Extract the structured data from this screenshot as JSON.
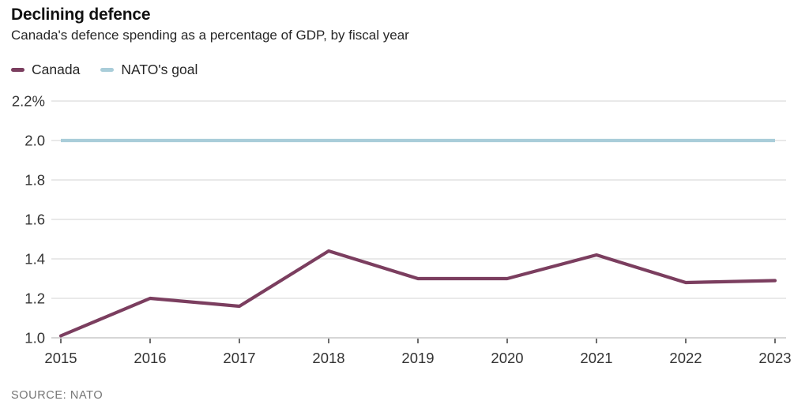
{
  "header": {
    "title": "Declining defence",
    "subtitle": "Canada's defence spending as a percentage of GDP, by fiscal year"
  },
  "legend": {
    "items": [
      {
        "label": "Canada",
        "color": "#7b3e5f"
      },
      {
        "label": "NATO's goal",
        "color": "#a9cdd9"
      }
    ]
  },
  "source": "SOURCE: NATO",
  "chart_data": {
    "type": "line",
    "title": "Declining defence",
    "subtitle": "Canada's defence spending as a percentage of GDP, by fiscal year",
    "x": [
      "2015",
      "2016",
      "2017",
      "2018",
      "2019",
      "2020",
      "2021",
      "2022",
      "2023"
    ],
    "xlabel": "",
    "ylabel": "",
    "series": [
      {
        "name": "Canada",
        "color": "#7b3e5f",
        "values": [
          1.01,
          1.2,
          1.16,
          1.44,
          1.3,
          1.3,
          1.42,
          1.28,
          1.29
        ]
      },
      {
        "name": "NATO's goal",
        "color": "#a9cdd9",
        "values": [
          2.0,
          2.0,
          2.0,
          2.0,
          2.0,
          2.0,
          2.0,
          2.0,
          2.0
        ]
      }
    ],
    "ylim": [
      1.0,
      2.2
    ],
    "yticks": [
      {
        "value": 1.0,
        "label": "1.0"
      },
      {
        "value": 1.2,
        "label": "1.2"
      },
      {
        "value": 1.4,
        "label": "1.4"
      },
      {
        "value": 1.6,
        "label": "1.6"
      },
      {
        "value": 1.8,
        "label": "1.8"
      },
      {
        "value": 2.0,
        "label": "2.0"
      },
      {
        "value": 2.2,
        "label": "2.2%"
      }
    ],
    "grid": "horizontal",
    "legend_position": "top-left",
    "colors": {
      "gridline": "#dcdcdc",
      "axis_line": "#c9c9c9",
      "tick": "#3a3a3a",
      "axis_label": "#333333"
    }
  }
}
